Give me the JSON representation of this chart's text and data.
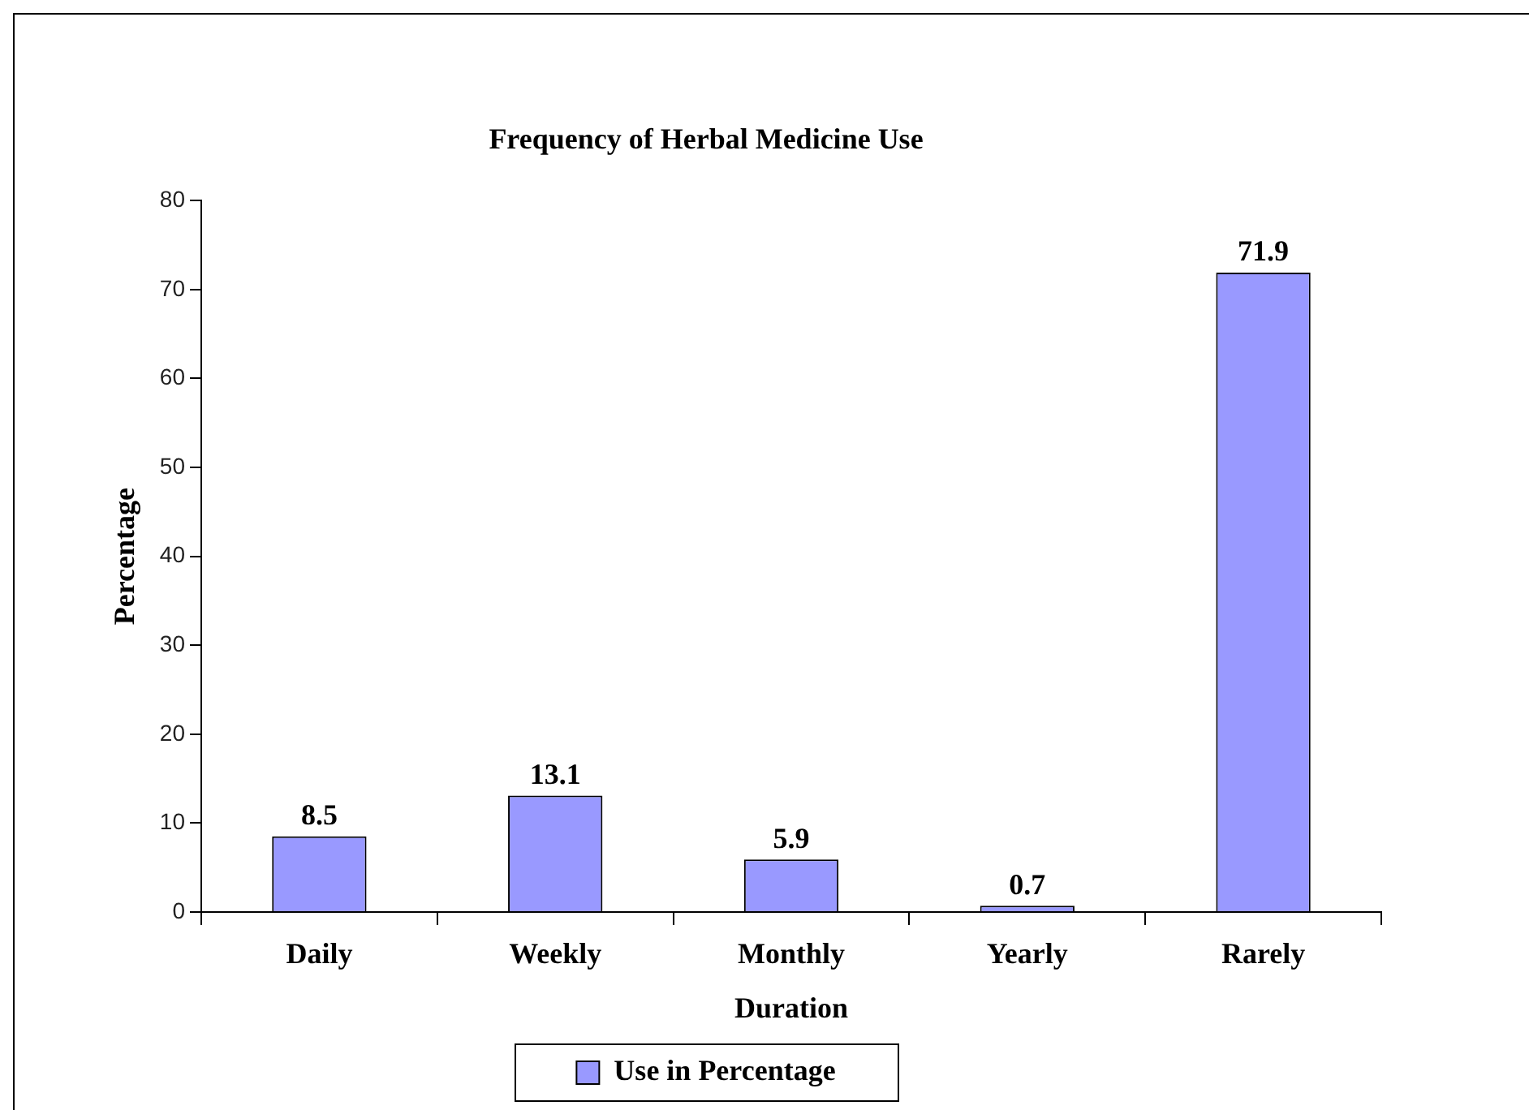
{
  "chart_data": {
    "type": "bar",
    "title": "Frequency of Herbal Medicine Use",
    "xlabel": "Duration",
    "ylabel": "Percentage",
    "categories": [
      "Daily",
      "Weekly",
      "Monthly",
      "Yearly",
      "Rarely"
    ],
    "series": [
      {
        "name": "Use in Percentage",
        "color": "#9999ff",
        "values": [
          8.5,
          13.1,
          5.9,
          0.7,
          71.9
        ]
      }
    ],
    "ylim": [
      0,
      80
    ],
    "yticks": [
      0,
      10,
      20,
      30,
      40,
      50,
      60,
      70,
      80
    ],
    "grid": false,
    "legend": "bottom",
    "data_labels": true
  }
}
